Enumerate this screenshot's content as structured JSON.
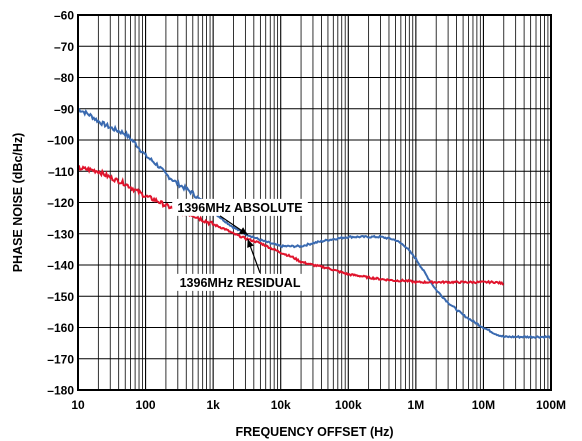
{
  "chart_data": {
    "type": "line",
    "xlabel": "FREQUENCY OFFSET (Hz)",
    "ylabel": "PHASE NOISE (dBc/Hz)",
    "x_scale": "log",
    "xlim": [
      10,
      100000000
    ],
    "ylim": [
      -180,
      -60
    ],
    "grid": true,
    "x_ticks": [
      {
        "value": 10,
        "label": "10"
      },
      {
        "value": 100,
        "label": "100"
      },
      {
        "value": 1000,
        "label": "1k"
      },
      {
        "value": 10000,
        "label": "10k"
      },
      {
        "value": 100000,
        "label": "100k"
      },
      {
        "value": 1000000,
        "label": "1M"
      },
      {
        "value": 10000000,
        "label": "10M"
      },
      {
        "value": 100000000,
        "label": "100M"
      }
    ],
    "y_ticks": [
      {
        "value": -60,
        "label": "–60"
      },
      {
        "value": -70,
        "label": "–70"
      },
      {
        "value": -80,
        "label": "–80"
      },
      {
        "value": -90,
        "label": "–90"
      },
      {
        "value": -100,
        "label": "–100"
      },
      {
        "value": -110,
        "label": "–110"
      },
      {
        "value": -120,
        "label": "–120"
      },
      {
        "value": -130,
        "label": "–130"
      },
      {
        "value": -140,
        "label": "–140"
      },
      {
        "value": -150,
        "label": "–150"
      },
      {
        "value": -160,
        "label": "–160"
      },
      {
        "value": -170,
        "label": "–170"
      },
      {
        "value": -180,
        "label": "–180"
      }
    ],
    "series": [
      {
        "name": "1396MHz ABSOLUTE",
        "color": "#3a6ab0",
        "x": [
          10,
          15,
          20,
          30,
          50,
          70,
          100,
          150,
          200,
          300,
          500,
          700,
          1000,
          1500,
          2000,
          3000,
          5000,
          7000,
          10000,
          15000,
          20000,
          30000,
          50000,
          70000,
          100000,
          150000,
          200000,
          300000,
          400000,
          500000,
          700000,
          1000000,
          1500000,
          2000000,
          3000000,
          5000000,
          7000000,
          10000000,
          15000000,
          20000000,
          30000000,
          50000000,
          100000000
        ],
        "y": [
          -90,
          -92,
          -94,
          -96,
          -98,
          -101,
          -105,
          -108,
          -111,
          -114,
          -117,
          -120,
          -123,
          -126,
          -128,
          -130,
          -132,
          -133,
          -134,
          -134,
          -134,
          -133,
          -132,
          -131.5,
          -131,
          -131,
          -131,
          -131,
          -131.5,
          -132,
          -134,
          -138,
          -144,
          -148,
          -152,
          -156,
          -158,
          -160,
          -162,
          -163,
          -163,
          -163,
          -163
        ]
      },
      {
        "name": "1396MHz RESIDUAL",
        "color": "#e0142c",
        "x": [
          10,
          15,
          20,
          30,
          50,
          70,
          100,
          150,
          200,
          300,
          500,
          700,
          1000,
          1500,
          2000,
          3000,
          5000,
          7000,
          10000,
          15000,
          20000,
          30000,
          50000,
          70000,
          100000,
          150000,
          200000,
          300000,
          500000,
          700000,
          1000000,
          1500000,
          2000000,
          3000000,
          5000000,
          7000000,
          10000000,
          15000000,
          20000000
        ],
        "y": [
          -109,
          -109.5,
          -110,
          -112,
          -114,
          -116,
          -118,
          -119.5,
          -121,
          -122.5,
          -124,
          -125.5,
          -127,
          -128.5,
          -130,
          -131.5,
          -133,
          -134.5,
          -136,
          -137.5,
          -139,
          -140,
          -141,
          -142,
          -143,
          -143.5,
          -144,
          -144.5,
          -145,
          -145,
          -145.5,
          -145.5,
          -145.5,
          -145.5,
          -145.5,
          -145.5,
          -145.5,
          -145.5,
          -146
        ]
      }
    ],
    "annotations": [
      {
        "text": "1396MHz ABSOLUTE",
        "x": 2500,
        "y": -123,
        "series": 0
      },
      {
        "text": "1396MHz RESIDUAL",
        "x": 2500,
        "y": -147,
        "series": 1
      }
    ]
  }
}
